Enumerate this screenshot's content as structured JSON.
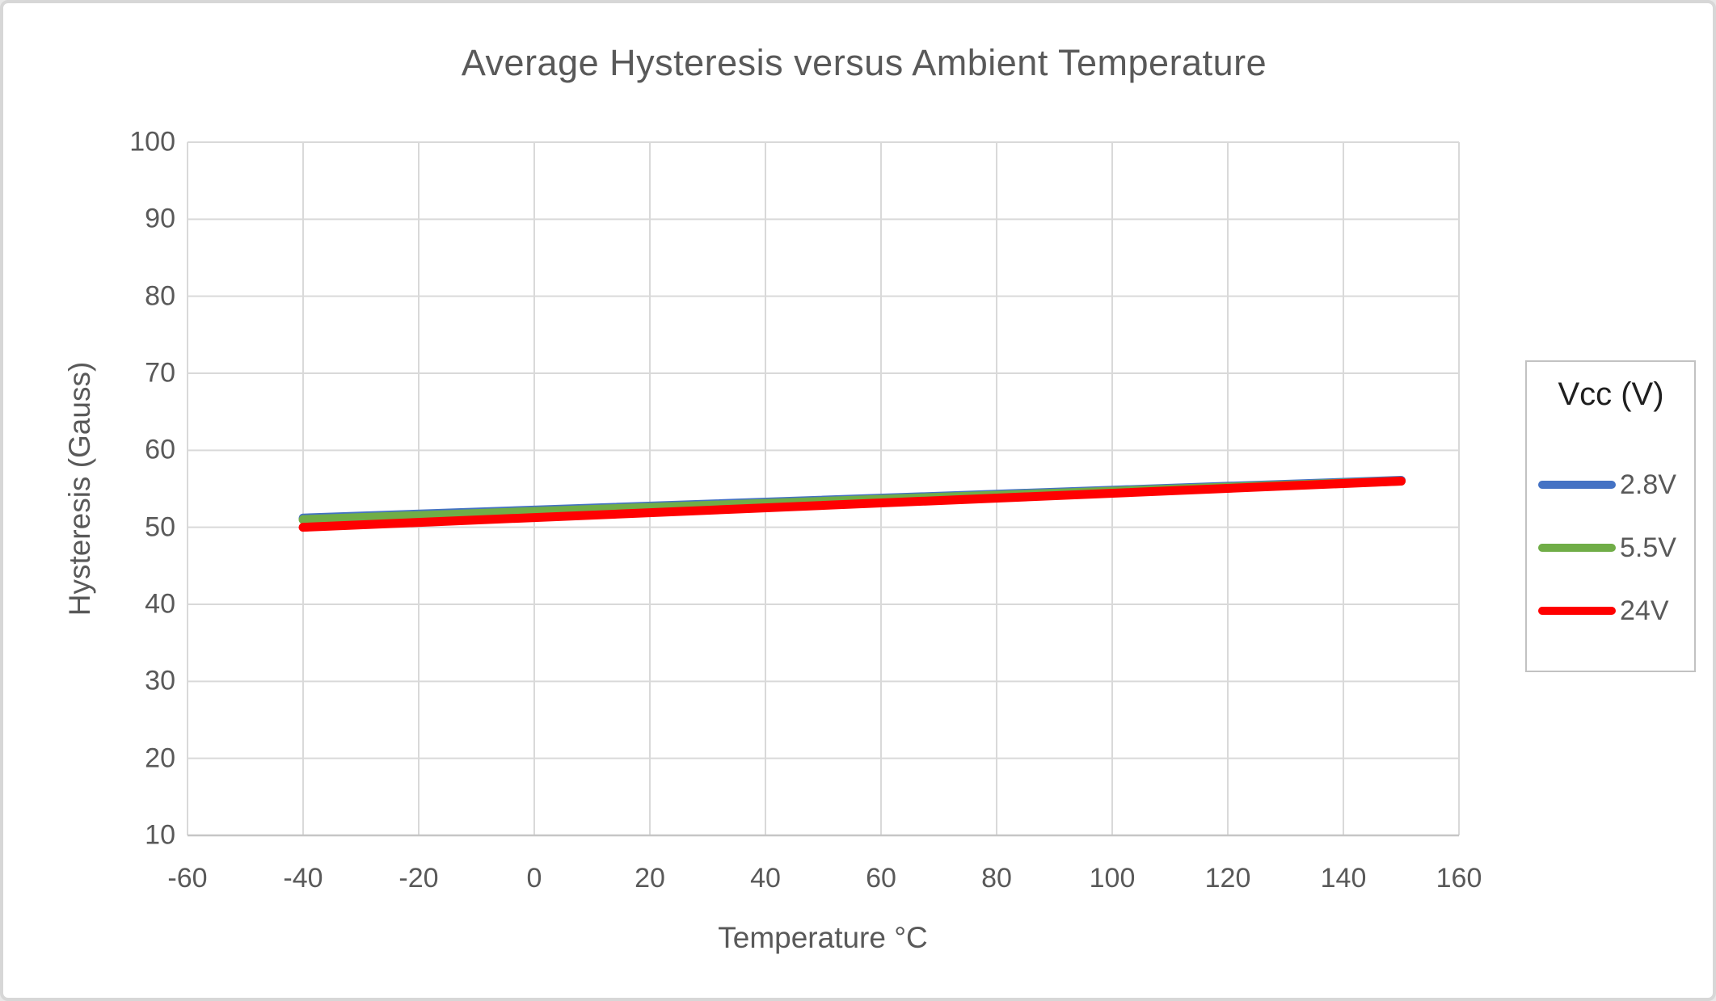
{
  "window": {
    "background": "#ffffff",
    "border_color": "#d7d7d7"
  },
  "colors": {
    "text": "#595959",
    "gridline": "#d9d9d9",
    "axis_line": "#c6c6c6",
    "legend_border": "#c2c2c2",
    "legend_title_text": "#1f1f1f"
  },
  "chart_data": {
    "type": "line",
    "title": "Average Hysteresis versus Ambient Temperature",
    "xlabel": "Temperature °C",
    "ylabel": "Hysteresis (Gauss)",
    "xlim": [
      -60,
      160
    ],
    "ylim": [
      10,
      100
    ],
    "x_ticks": [
      -60,
      -40,
      -20,
      0,
      20,
      40,
      60,
      80,
      100,
      120,
      140,
      160
    ],
    "y_ticks": [
      10,
      20,
      30,
      40,
      50,
      60,
      70,
      80,
      90,
      100
    ],
    "grid": true,
    "line_width": 11,
    "legend": {
      "title": "Vcc (V)",
      "position": "right",
      "entries": [
        "2.8V",
        "5.5V",
        "24V"
      ]
    },
    "series": [
      {
        "name": "2.8V",
        "color": "#4472C4",
        "points": [
          [
            -40,
            51.2
          ],
          [
            150,
            56.1
          ]
        ]
      },
      {
        "name": "5.5V",
        "color": "#70AD47",
        "points": [
          [
            -40,
            51.0
          ],
          [
            150,
            56.0
          ]
        ]
      },
      {
        "name": "24V",
        "color": "#FF0000",
        "points": [
          [
            -40,
            50.0
          ],
          [
            150,
            56.0
          ]
        ]
      }
    ]
  }
}
